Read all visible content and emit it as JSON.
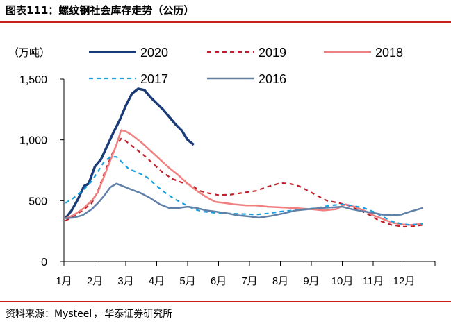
{
  "header": {
    "title_prefix": "图表111：",
    "title_text": "螺纹钢社会库存走势（公历）"
  },
  "footer": {
    "source_label": "资料来源：",
    "source_text": "Mysteel",
    "source_sep": "，",
    "source_org": "华泰证券研究所"
  },
  "chart_data": {
    "type": "line",
    "unit_label": "（万吨）",
    "ylim": [
      0,
      1500
    ],
    "yticks": [
      0,
      500,
      1000,
      1500
    ],
    "ytick_labels": [
      "0",
      "500",
      "1,000",
      "1,500"
    ],
    "xlim": [
      0,
      12
    ],
    "x_units": "months (0 = start of 1月, 12 = end of 12月)",
    "x_categories": [
      "1月",
      "2月",
      "3月",
      "4月",
      "5月",
      "6月",
      "7月",
      "8月",
      "9月",
      "10月",
      "11月",
      "12月"
    ],
    "grid": false,
    "legend_placement": "top",
    "series": [
      {
        "name": "2020",
        "color": "#1a3b78",
        "dash": "solid",
        "width": 3.5,
        "points": [
          [
            0.05,
            355
          ],
          [
            0.25,
            420
          ],
          [
            0.45,
            510
          ],
          [
            0.65,
            620
          ],
          [
            0.8,
            640
          ],
          [
            1.0,
            780
          ],
          [
            1.2,
            840
          ],
          [
            1.4,
            950
          ],
          [
            1.6,
            1060
          ],
          [
            1.8,
            1160
          ],
          [
            2.0,
            1280
          ],
          [
            2.2,
            1380
          ],
          [
            2.4,
            1420
          ],
          [
            2.6,
            1410
          ],
          [
            2.8,
            1350
          ],
          [
            3.0,
            1300
          ],
          [
            3.2,
            1250
          ],
          [
            3.4,
            1190
          ],
          [
            3.6,
            1130
          ],
          [
            3.8,
            1080
          ],
          [
            4.0,
            1000
          ],
          [
            4.2,
            960
          ]
        ]
      },
      {
        "name": "2019",
        "color": "#c0202a",
        "dash": "dash",
        "width": 2.2,
        "points": [
          [
            0.05,
            335
          ],
          [
            0.3,
            370
          ],
          [
            0.6,
            420
          ],
          [
            0.9,
            480
          ],
          [
            1.1,
            580
          ],
          [
            1.3,
            720
          ],
          [
            1.5,
            850
          ],
          [
            1.7,
            960
          ],
          [
            1.85,
            1010
          ],
          [
            2.0,
            990
          ],
          [
            2.3,
            930
          ],
          [
            2.6,
            870
          ],
          [
            2.9,
            800
          ],
          [
            3.2,
            730
          ],
          [
            3.5,
            680
          ],
          [
            3.8,
            650
          ],
          [
            4.1,
            630
          ],
          [
            4.4,
            580
          ],
          [
            4.7,
            560
          ],
          [
            5.0,
            545
          ],
          [
            5.4,
            550
          ],
          [
            5.8,
            565
          ],
          [
            6.2,
            580
          ],
          [
            6.6,
            615
          ],
          [
            7.0,
            645
          ],
          [
            7.3,
            640
          ],
          [
            7.6,
            620
          ],
          [
            7.9,
            580
          ],
          [
            8.2,
            540
          ],
          [
            8.5,
            500
          ],
          [
            8.9,
            480
          ],
          [
            9.2,
            460
          ],
          [
            9.5,
            430
          ],
          [
            9.9,
            380
          ],
          [
            10.2,
            335
          ],
          [
            10.6,
            300
          ],
          [
            11.0,
            285
          ],
          [
            11.3,
            290
          ],
          [
            11.6,
            300
          ]
        ]
      },
      {
        "name": "2018",
        "color": "#f08080",
        "dash": "solid",
        "width": 2.5,
        "points": [
          [
            0.05,
            355
          ],
          [
            0.3,
            380
          ],
          [
            0.6,
            430
          ],
          [
            0.9,
            500
          ],
          [
            1.1,
            570
          ],
          [
            1.3,
            700
          ],
          [
            1.5,
            830
          ],
          [
            1.7,
            960
          ],
          [
            1.85,
            1080
          ],
          [
            2.0,
            1070
          ],
          [
            2.2,
            1040
          ],
          [
            2.5,
            980
          ],
          [
            2.8,
            910
          ],
          [
            3.1,
            840
          ],
          [
            3.4,
            770
          ],
          [
            3.7,
            710
          ],
          [
            4.0,
            640
          ],
          [
            4.3,
            580
          ],
          [
            4.6,
            530
          ],
          [
            4.9,
            490
          ],
          [
            5.2,
            480
          ],
          [
            5.5,
            470
          ],
          [
            5.9,
            460
          ],
          [
            6.2,
            460
          ],
          [
            6.6,
            450
          ],
          [
            7.0,
            445
          ],
          [
            7.4,
            440
          ],
          [
            7.7,
            435
          ],
          [
            8.0,
            430
          ],
          [
            8.4,
            420
          ],
          [
            8.8,
            430
          ],
          [
            9.1,
            470
          ],
          [
            9.4,
            450
          ],
          [
            9.7,
            420
          ],
          [
            10.0,
            380
          ],
          [
            10.3,
            350
          ],
          [
            10.6,
            320
          ],
          [
            10.9,
            305
          ],
          [
            11.2,
            300
          ],
          [
            11.6,
            310
          ]
        ]
      },
      {
        "name": "2017",
        "color": "#1aa0e0",
        "dash": "dash",
        "width": 2.2,
        "points": [
          [
            0.05,
            480
          ],
          [
            0.3,
            520
          ],
          [
            0.6,
            580
          ],
          [
            0.9,
            660
          ],
          [
            1.1,
            740
          ],
          [
            1.3,
            820
          ],
          [
            1.5,
            860
          ],
          [
            1.7,
            860
          ],
          [
            1.9,
            810
          ],
          [
            2.1,
            760
          ],
          [
            2.4,
            730
          ],
          [
            2.7,
            690
          ],
          [
            3.0,
            620
          ],
          [
            3.3,
            560
          ],
          [
            3.6,
            510
          ],
          [
            3.9,
            470
          ],
          [
            4.2,
            430
          ],
          [
            4.5,
            410
          ],
          [
            4.9,
            400
          ],
          [
            5.3,
            395
          ],
          [
            5.8,
            390
          ],
          [
            6.2,
            385
          ],
          [
            6.6,
            395
          ],
          [
            7.0,
            410
          ],
          [
            7.4,
            420
          ],
          [
            7.8,
            430
          ],
          [
            8.2,
            440
          ],
          [
            8.6,
            460
          ],
          [
            9.0,
            470
          ],
          [
            9.3,
            460
          ],
          [
            9.7,
            440
          ],
          [
            10.0,
            410
          ],
          [
            10.3,
            370
          ],
          [
            10.6,
            330
          ],
          [
            10.9,
            310
          ],
          [
            11.2,
            300
          ],
          [
            11.6,
            310
          ]
        ]
      },
      {
        "name": "2016",
        "color": "#6080a8",
        "dash": "solid",
        "width": 2.5,
        "points": [
          [
            0.05,
            355
          ],
          [
            0.3,
            360
          ],
          [
            0.6,
            380
          ],
          [
            0.9,
            430
          ],
          [
            1.1,
            480
          ],
          [
            1.3,
            540
          ],
          [
            1.5,
            610
          ],
          [
            1.7,
            640
          ],
          [
            1.9,
            620
          ],
          [
            2.2,
            590
          ],
          [
            2.5,
            560
          ],
          [
            2.8,
            520
          ],
          [
            3.1,
            470
          ],
          [
            3.4,
            440
          ],
          [
            3.7,
            440
          ],
          [
            4.0,
            450
          ],
          [
            4.3,
            440
          ],
          [
            4.6,
            420
          ],
          [
            4.9,
            410
          ],
          [
            5.3,
            395
          ],
          [
            5.6,
            380
          ],
          [
            6.0,
            370
          ],
          [
            6.3,
            360
          ],
          [
            6.7,
            375
          ],
          [
            7.1,
            395
          ],
          [
            7.5,
            420
          ],
          [
            7.9,
            430
          ],
          [
            8.3,
            440
          ],
          [
            8.7,
            445
          ],
          [
            9.0,
            450
          ],
          [
            9.3,
            430
          ],
          [
            9.6,
            415
          ],
          [
            10.0,
            400
          ],
          [
            10.3,
            385
          ],
          [
            10.6,
            380
          ],
          [
            10.9,
            385
          ],
          [
            11.2,
            410
          ],
          [
            11.6,
            440
          ]
        ]
      }
    ]
  }
}
